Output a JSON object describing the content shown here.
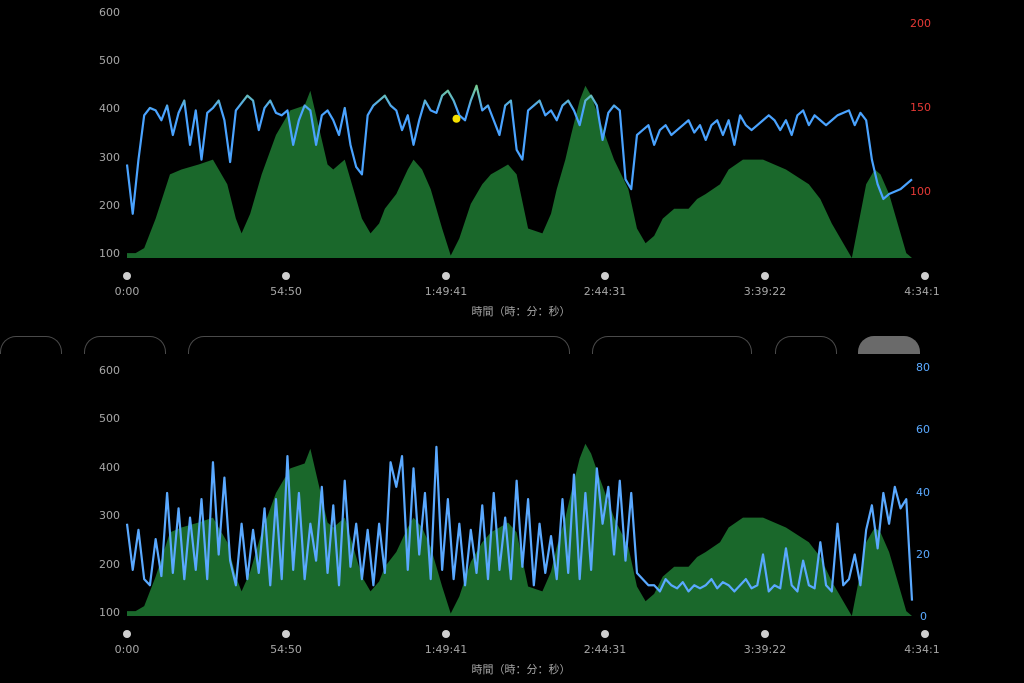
{
  "chart_data": [
    {
      "type": "line",
      "title": "",
      "xlabel": "時間（時：分：秒）",
      "ylabel": "",
      "x_ticks": [
        "0:00",
        "54:50",
        "1:49:41",
        "2:44:31",
        "3:39:22",
        "4:34:1"
      ],
      "x_range_minutes": [
        0,
        274
      ],
      "y_left_ticks": [
        "600",
        "500",
        "400",
        "300",
        "200",
        "100"
      ],
      "y_left_range": [
        100,
        600
      ],
      "y_right_ticks": [
        "200",
        "150",
        "100"
      ],
      "y_right_range": [
        63,
        200
      ],
      "y_right_color": "#e53935",
      "series": [
        {
          "kind": "area",
          "color": "#1f7a33",
          "x": [
            0,
            3,
            6,
            10,
            15,
            19,
            25,
            30,
            35,
            38,
            40,
            43,
            47,
            52,
            57,
            62,
            64,
            66,
            70,
            72,
            74,
            76,
            78,
            82,
            85,
            88,
            90,
            94,
            98,
            100,
            103,
            106,
            110,
            113,
            116,
            120,
            124,
            127,
            130,
            133,
            136,
            140,
            145,
            148,
            150,
            153,
            155,
            158,
            160,
            162,
            165,
            170,
            175,
            178,
            181,
            184,
            187,
            191,
            196,
            199,
            202,
            207,
            210,
            215,
            222,
            230,
            238,
            242,
            246,
            250,
            253,
            258,
            261,
            263,
            266,
            270,
            272,
            274
          ],
          "values": [
            110,
            110,
            120,
            180,
            270,
            280,
            290,
            300,
            250,
            180,
            150,
            190,
            270,
            350,
            400,
            410,
            440,
            390,
            290,
            280,
            290,
            300,
            260,
            180,
            150,
            170,
            200,
            230,
            280,
            300,
            280,
            240,
            160,
            105,
            140,
            210,
            250,
            270,
            280,
            290,
            270,
            160,
            150,
            190,
            240,
            300,
            350,
            420,
            450,
            430,
            380,
            300,
            240,
            160,
            130,
            145,
            180,
            200,
            200,
            220,
            230,
            250,
            280,
            300,
            300,
            280,
            250,
            220,
            170,
            130,
            100,
            250,
            280,
            270,
            230,
            150,
            110,
            100
          ]
        },
        {
          "kind": "line",
          "colors": [
            "#4aa3ff",
            "#7fd37a",
            "#f5d142",
            "#ff8a3c",
            "#e53935"
          ],
          "x": [
            0,
            2,
            4,
            6,
            8,
            10,
            12,
            14,
            16,
            18,
            20,
            22,
            24,
            26,
            28,
            30,
            32,
            34,
            36,
            38,
            40,
            42,
            44,
            46,
            48,
            50,
            52,
            54,
            56,
            58,
            60,
            62,
            64,
            66,
            68,
            70,
            72,
            74,
            76,
            78,
            80,
            82,
            84,
            86,
            88,
            90,
            92,
            94,
            96,
            98,
            100,
            102,
            104,
            106,
            108,
            110,
            112,
            114,
            116,
            118,
            120,
            122,
            124,
            126,
            128,
            130,
            132,
            134,
            136,
            138,
            140,
            142,
            144,
            146,
            148,
            150,
            152,
            154,
            156,
            158,
            160,
            162,
            164,
            166,
            168,
            170,
            172,
            174,
            176,
            178,
            180,
            182,
            184,
            186,
            188,
            190,
            192,
            194,
            196,
            198,
            200,
            202,
            204,
            206,
            208,
            210,
            212,
            214,
            216,
            218,
            220,
            222,
            224,
            226,
            228,
            230,
            232,
            234,
            236,
            238,
            240,
            242,
            244,
            246,
            248,
            250,
            252,
            254,
            256,
            258,
            260,
            262,
            264,
            266,
            270,
            274
          ],
          "values": [
            290,
            190,
            300,
            390,
            405,
            400,
            380,
            410,
            350,
            395,
            420,
            330,
            400,
            300,
            395,
            405,
            420,
            380,
            295,
            400,
            415,
            430,
            420,
            360,
            405,
            420,
            395,
            390,
            400,
            330,
            380,
            410,
            400,
            330,
            390,
            400,
            380,
            350,
            405,
            330,
            285,
            270,
            390,
            410,
            420,
            430,
            410,
            400,
            360,
            390,
            330,
            380,
            420,
            400,
            395,
            430,
            440,
            420,
            390,
            380,
            420,
            450,
            400,
            410,
            380,
            350,
            410,
            420,
            320,
            300,
            400,
            410,
            420,
            390,
            400,
            380,
            410,
            420,
            400,
            370,
            420,
            430,
            410,
            340,
            395,
            410,
            400,
            260,
            240,
            350,
            360,
            370,
            330,
            360,
            370,
            350,
            360,
            370,
            380,
            355,
            370,
            340,
            370,
            380,
            350,
            380,
            330,
            390,
            370,
            360,
            370,
            380,
            390,
            380,
            360,
            380,
            350,
            390,
            400,
            370,
            390,
            380,
            370,
            380,
            390,
            395,
            400,
            370,
            395,
            380,
            300,
            250,
            220,
            230,
            240,
            260
          ]
        }
      ],
      "markers": [
        {
          "x": 115,
          "y": 383,
          "color": "#f5e000"
        }
      ]
    },
    {
      "type": "line",
      "title": "",
      "xlabel": "時間（時：分：秒）",
      "ylabel": "",
      "x_ticks": [
        "0:00",
        "54:50",
        "1:49:41",
        "2:44:31",
        "3:39:22",
        "4:34:1"
      ],
      "x_range_minutes": [
        0,
        274
      ],
      "y_left_ticks": [
        "600",
        "500",
        "400",
        "300",
        "200",
        "100"
      ],
      "y_left_range": [
        100,
        600
      ],
      "y_right_ticks": [
        "80",
        "60",
        "40",
        "20",
        "0"
      ],
      "y_right_range": [
        0,
        80
      ],
      "y_right_color": "#5aa9ff",
      "series": [
        {
          "kind": "area",
          "color": "#1f7a33",
          "x": [
            0,
            3,
            6,
            10,
            15,
            19,
            25,
            30,
            35,
            38,
            40,
            43,
            47,
            52,
            57,
            62,
            64,
            66,
            70,
            72,
            74,
            76,
            78,
            82,
            85,
            88,
            90,
            94,
            98,
            100,
            103,
            106,
            110,
            113,
            116,
            120,
            124,
            127,
            130,
            133,
            136,
            140,
            145,
            148,
            150,
            153,
            155,
            158,
            160,
            162,
            165,
            170,
            175,
            178,
            181,
            184,
            187,
            191,
            196,
            199,
            202,
            207,
            210,
            215,
            222,
            230,
            238,
            242,
            246,
            250,
            253,
            258,
            261,
            263,
            266,
            270,
            272,
            274
          ],
          "values": [
            110,
            110,
            120,
            180,
            270,
            280,
            290,
            300,
            250,
            180,
            150,
            190,
            270,
            350,
            400,
            410,
            440,
            390,
            290,
            280,
            290,
            300,
            260,
            180,
            150,
            170,
            200,
            230,
            280,
            300,
            280,
            240,
            160,
            105,
            140,
            210,
            250,
            270,
            280,
            290,
            270,
            160,
            150,
            190,
            240,
            300,
            350,
            420,
            450,
            430,
            380,
            300,
            240,
            160,
            130,
            145,
            180,
            200,
            200,
            220,
            230,
            250,
            280,
            300,
            300,
            280,
            250,
            220,
            170,
            130,
            100,
            250,
            280,
            270,
            230,
            150,
            110,
            100
          ]
        },
        {
          "kind": "line",
          "color": "#5aa9ff",
          "axis": "right",
          "x": [
            0,
            2,
            4,
            6,
            8,
            10,
            12,
            14,
            16,
            18,
            20,
            22,
            24,
            26,
            28,
            30,
            32,
            34,
            36,
            38,
            40,
            42,
            44,
            46,
            48,
            50,
            52,
            54,
            56,
            58,
            60,
            62,
            64,
            66,
            68,
            70,
            72,
            74,
            76,
            78,
            80,
            82,
            84,
            86,
            88,
            90,
            92,
            94,
            96,
            98,
            100,
            102,
            104,
            106,
            108,
            110,
            112,
            114,
            116,
            118,
            120,
            122,
            124,
            126,
            128,
            130,
            132,
            134,
            136,
            138,
            140,
            142,
            144,
            146,
            148,
            150,
            152,
            154,
            156,
            158,
            160,
            162,
            164,
            166,
            168,
            170,
            172,
            174,
            176,
            178,
            180,
            182,
            184,
            186,
            188,
            190,
            192,
            194,
            196,
            198,
            200,
            202,
            204,
            206,
            208,
            210,
            212,
            214,
            216,
            218,
            220,
            222,
            224,
            226,
            228,
            230,
            232,
            234,
            236,
            238,
            240,
            242,
            244,
            246,
            248,
            250,
            252,
            254,
            256,
            258,
            260,
            262,
            264,
            266,
            268,
            270,
            272,
            274
          ],
          "values": [
            30,
            15,
            28,
            12,
            10,
            25,
            13,
            40,
            14,
            35,
            12,
            32,
            15,
            38,
            12,
            50,
            20,
            45,
            18,
            10,
            30,
            12,
            28,
            14,
            35,
            10,
            38,
            12,
            52,
            15,
            40,
            12,
            30,
            18,
            42,
            14,
            36,
            10,
            44,
            16,
            30,
            12,
            28,
            10,
            30,
            14,
            50,
            42,
            52,
            15,
            48,
            20,
            40,
            12,
            55,
            15,
            38,
            12,
            30,
            10,
            28,
            14,
            36,
            12,
            40,
            15,
            32,
            12,
            44,
            16,
            38,
            10,
            30,
            14,
            26,
            12,
            38,
            14,
            46,
            12,
            40,
            15,
            48,
            30,
            42,
            20,
            44,
            18,
            40,
            14,
            12,
            10,
            10,
            8,
            12,
            10,
            9,
            11,
            8,
            10,
            9,
            10,
            12,
            9,
            11,
            10,
            8,
            10,
            12,
            9,
            10,
            20,
            8,
            10,
            9,
            22,
            10,
            8,
            18,
            10,
            9,
            24,
            10,
            8,
            30,
            10,
            12,
            20,
            10,
            28,
            36,
            22,
            40,
            30,
            42,
            35,
            38,
            5
          ]
        }
      ],
      "markers": []
    }
  ],
  "controls": {
    "range_pills": [
      "",
      "",
      "",
      "",
      "",
      ""
    ]
  }
}
